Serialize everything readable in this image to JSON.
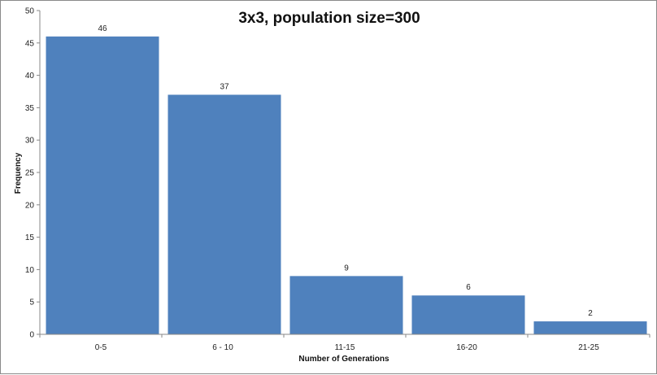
{
  "chart_data": {
    "type": "bar",
    "title": "3x3, population size=300",
    "xlabel": "Number of Generations",
    "ylabel": "Frequency",
    "categories": [
      "0-5",
      "6 - 10",
      "11-15",
      "16-20",
      "21-25"
    ],
    "values": [
      46,
      37,
      9,
      6,
      2
    ],
    "data_labels": [
      "46",
      "37",
      "9",
      "6",
      "2"
    ],
    "ylim": [
      0,
      50
    ],
    "yticks": [
      0,
      5,
      10,
      15,
      20,
      25,
      30,
      35,
      40,
      45,
      50
    ],
    "grid": false,
    "legend": "none",
    "bar_color": "#4f81bd"
  }
}
